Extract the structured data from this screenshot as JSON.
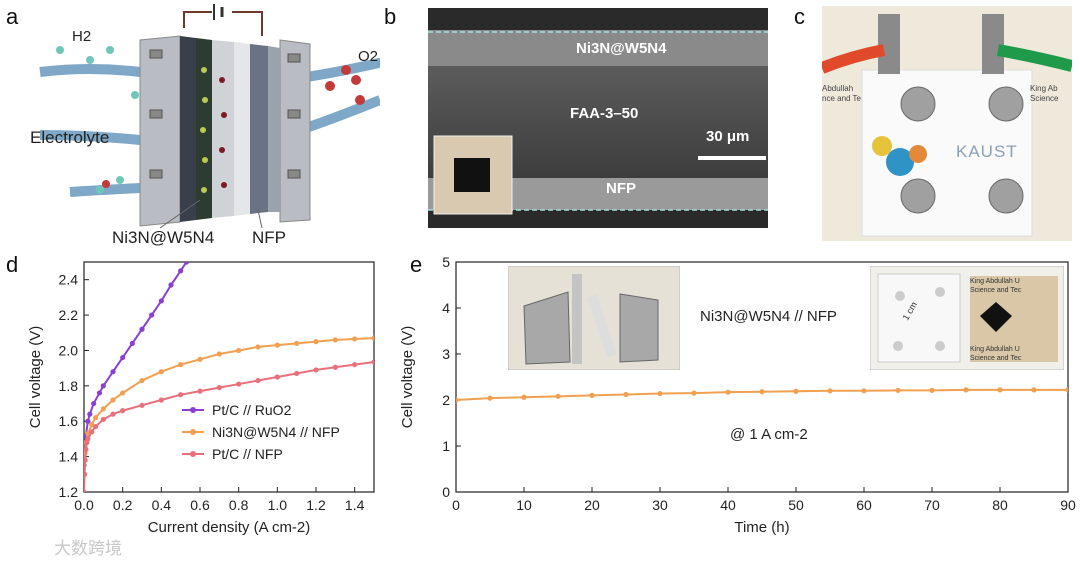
{
  "panels": {
    "a": {
      "label": "a",
      "h2": "H2",
      "o2": "O2",
      "electrolyte": "Electrolyte",
      "cathode": "Ni3N@W5N4",
      "anode": "NFP"
    },
    "b": {
      "label": "b",
      "top_layer": "Ni3N@W5N4",
      "membrane": "FAA-3–50",
      "scale_bar": "30 μm",
      "bottom_layer": "NFP"
    },
    "c": {
      "label": "c",
      "logo_text": "KAUST",
      "left_sign": "Abdullah",
      "left_sign2": "nce and Te",
      "right_sign": "King Ab",
      "right_sign2": "Science"
    },
    "d": {
      "label": "d"
    },
    "e": {
      "label": "e",
      "series_label": "Ni3N@W5N4 // NFP",
      "annotation": "@ 1 A cm-2",
      "inset_right_text": "1 cm",
      "inset_right_sign": "King Abdullah U",
      "inset_right_sign2": "Science and Tec",
      "inset_right_sign3": "King Abdullah U",
      "inset_right_sign4": "Science and Tec"
    }
  },
  "watermark": "大数跨境",
  "chart_data": [
    {
      "id": "d",
      "type": "line",
      "xlabel": "Current density (A cm-2)",
      "ylabel": "Cell voltage (V)",
      "xlim": [
        0,
        1.5
      ],
      "ylim": [
        1.2,
        2.5
      ],
      "xticks": [
        "0.0",
        "0.2",
        "0.4",
        "0.6",
        "0.8",
        "1.0",
        "1.2",
        "1.4"
      ],
      "yticks": [
        "1.2",
        "1.4",
        "1.6",
        "1.8",
        "2.0",
        "2.2",
        "2.4"
      ],
      "legend_position": "bottom-right",
      "series": [
        {
          "name": "Pt/C // RuO2",
          "color": "#8b3fd1",
          "x": [
            0.0,
            0.005,
            0.01,
            0.02,
            0.03,
            0.05,
            0.08,
            0.1,
            0.15,
            0.2,
            0.25,
            0.3,
            0.35,
            0.4,
            0.45,
            0.5,
            0.53
          ],
          "y": [
            1.35,
            1.45,
            1.52,
            1.6,
            1.64,
            1.7,
            1.76,
            1.8,
            1.88,
            1.96,
            2.04,
            2.12,
            2.2,
            2.28,
            2.37,
            2.45,
            2.5
          ]
        },
        {
          "name": "Ni3N@W5N4 // NFP",
          "color": "#f0a050",
          "x": [
            0.0,
            0.005,
            0.01,
            0.02,
            0.04,
            0.06,
            0.1,
            0.15,
            0.2,
            0.3,
            0.4,
            0.5,
            0.6,
            0.7,
            0.8,
            0.9,
            1.0,
            1.1,
            1.2,
            1.3,
            1.4,
            1.5
          ],
          "y": [
            1.3,
            1.42,
            1.48,
            1.53,
            1.58,
            1.62,
            1.67,
            1.72,
            1.76,
            1.83,
            1.88,
            1.92,
            1.95,
            1.98,
            2.0,
            2.02,
            2.03,
            2.04,
            2.05,
            2.06,
            2.065,
            2.07
          ]
        },
        {
          "name": "Pt/C // NFP",
          "color": "#e8707a",
          "x": [
            0.0,
            0.003,
            0.006,
            0.01,
            0.015,
            0.02,
            0.04,
            0.06,
            0.1,
            0.15,
            0.2,
            0.3,
            0.4,
            0.5,
            0.6,
            0.7,
            0.8,
            0.9,
            1.0,
            1.1,
            1.2,
            1.3,
            1.4,
            1.5
          ],
          "y": [
            1.2,
            1.3,
            1.38,
            1.44,
            1.48,
            1.5,
            1.54,
            1.57,
            1.61,
            1.64,
            1.66,
            1.69,
            1.72,
            1.75,
            1.77,
            1.79,
            1.81,
            1.83,
            1.85,
            1.87,
            1.89,
            1.905,
            1.92,
            1.935
          ]
        }
      ]
    },
    {
      "id": "e",
      "type": "line",
      "xlabel": "Time (h)",
      "ylabel": "Cell voltage (V)",
      "xlim": [
        0,
        90
      ],
      "ylim": [
        0,
        5
      ],
      "xticks": [
        "0",
        "10",
        "20",
        "30",
        "40",
        "50",
        "60",
        "70",
        "80",
        "90"
      ],
      "yticks": [
        "0",
        "1",
        "2",
        "3",
        "4",
        "5"
      ],
      "series": [
        {
          "name": "Ni3N@W5N4 // NFP",
          "color": "#f0a050",
          "x": [
            0,
            5,
            10,
            15,
            20,
            25,
            30,
            35,
            40,
            45,
            50,
            55,
            60,
            65,
            70,
            75,
            80,
            85,
            90
          ],
          "y": [
            2.0,
            2.04,
            2.06,
            2.08,
            2.1,
            2.12,
            2.14,
            2.15,
            2.17,
            2.18,
            2.19,
            2.2,
            2.2,
            2.21,
            2.21,
            2.22,
            2.22,
            2.22,
            2.22
          ]
        }
      ]
    }
  ]
}
